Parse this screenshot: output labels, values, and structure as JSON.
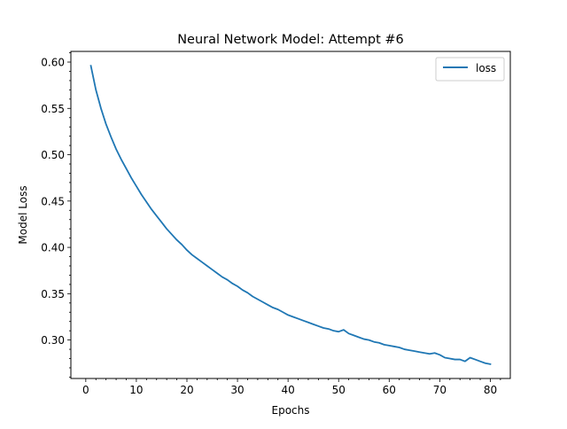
{
  "chart_data": {
    "type": "line",
    "title": "Neural Network Model: Attempt #6",
    "xlabel": "Epochs",
    "ylabel": "Model Loss",
    "xlim": [
      -2.95,
      83.95
    ],
    "ylim": [
      0.2585,
      0.6115
    ],
    "xticks": [
      0,
      10,
      20,
      30,
      40,
      50,
      60,
      70,
      80
    ],
    "xtick_labels": [
      "0",
      "10",
      "20",
      "30",
      "40",
      "50",
      "60",
      "70",
      "80"
    ],
    "yticks": [
      0.3,
      0.35,
      0.4,
      0.45,
      0.5,
      0.55,
      0.6
    ],
    "ytick_labels": [
      "0.30",
      "0.35",
      "0.40",
      "0.45",
      "0.50",
      "0.55",
      "0.60"
    ],
    "x_minor_step": 2,
    "y_minor_step": 0.01,
    "grid": false,
    "legend": {
      "position": "top-right",
      "entries": [
        "loss"
      ]
    },
    "series": [
      {
        "name": "loss",
        "color": "#1f77b4",
        "x": [
          1,
          2,
          3,
          4,
          5,
          6,
          7,
          8,
          9,
          10,
          11,
          12,
          13,
          14,
          15,
          16,
          17,
          18,
          19,
          20,
          21,
          22,
          23,
          24,
          25,
          26,
          27,
          28,
          29,
          30,
          31,
          32,
          33,
          34,
          35,
          36,
          37,
          38,
          39,
          40,
          41,
          42,
          43,
          44,
          45,
          46,
          47,
          48,
          49,
          50,
          51,
          52,
          53,
          54,
          55,
          56,
          57,
          58,
          59,
          60,
          61,
          62,
          63,
          64,
          65,
          66,
          67,
          68,
          69,
          70,
          71,
          72,
          73,
          74,
          75,
          76,
          77,
          78,
          79,
          80
        ],
        "values": [
          0.596,
          0.57,
          0.55,
          0.533,
          0.519,
          0.506,
          0.495,
          0.485,
          0.475,
          0.466,
          0.457,
          0.449,
          0.441,
          0.434,
          0.427,
          0.42,
          0.414,
          0.408,
          0.403,
          0.397,
          0.392,
          0.388,
          0.384,
          0.38,
          0.376,
          0.372,
          0.368,
          0.365,
          0.361,
          0.358,
          0.354,
          0.351,
          0.347,
          0.344,
          0.341,
          0.338,
          0.335,
          0.333,
          0.33,
          0.327,
          0.325,
          0.323,
          0.321,
          0.319,
          0.317,
          0.315,
          0.313,
          0.312,
          0.31,
          0.309,
          0.311,
          0.307,
          0.305,
          0.303,
          0.301,
          0.3,
          0.298,
          0.297,
          0.295,
          0.294,
          0.293,
          0.292,
          0.29,
          0.289,
          0.288,
          0.287,
          0.286,
          0.285,
          0.286,
          0.284,
          0.281,
          0.28,
          0.279,
          0.279,
          0.277,
          0.281,
          0.279,
          0.277,
          0.275,
          0.274
        ]
      }
    ]
  }
}
